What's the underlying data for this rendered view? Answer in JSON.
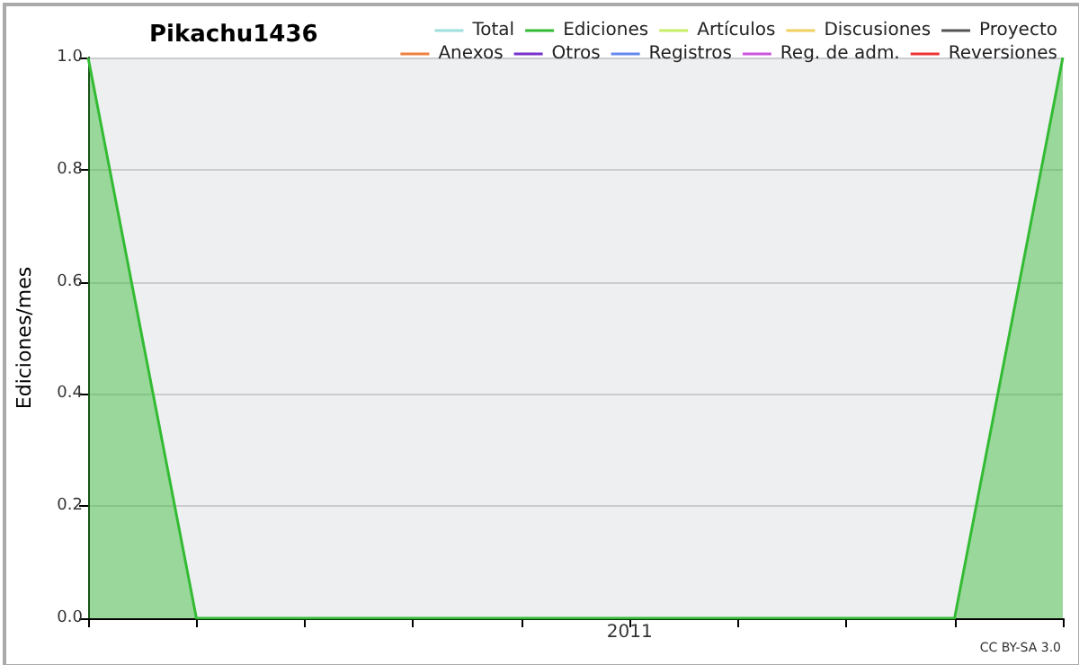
{
  "chart_data": {
    "type": "line",
    "title": "Pikachu1436",
    "ylabel": "Ediciones/mes",
    "categories": [
      null,
      null,
      null,
      null,
      null,
      "2011",
      null,
      null,
      null,
      null
    ],
    "series": [
      {
        "name": "Total",
        "color": "#a0dede",
        "values": [
          null,
          null,
          null,
          null,
          null,
          null,
          null,
          null,
          null,
          null
        ]
      },
      {
        "name": "Ediciones",
        "type": "area",
        "color": "#33bb33",
        "values": [
          1,
          0,
          0,
          0,
          0,
          0,
          0,
          0,
          0,
          1
        ]
      },
      {
        "name": "Artículos",
        "color": "#c8ee66",
        "values": [
          null,
          null,
          null,
          null,
          null,
          null,
          null,
          null,
          null,
          null
        ]
      },
      {
        "name": "Discusiones",
        "color": "#f0d060",
        "values": [
          null,
          null,
          null,
          null,
          null,
          null,
          null,
          null,
          null,
          null
        ]
      },
      {
        "name": "Proyecto",
        "color": "#555555",
        "values": [
          null,
          null,
          null,
          null,
          null,
          null,
          null,
          null,
          null,
          null
        ]
      },
      {
        "name": "Anexos",
        "color": "#f08040",
        "values": [
          null,
          null,
          null,
          null,
          null,
          null,
          null,
          null,
          null,
          null
        ]
      },
      {
        "name": "Otros",
        "color": "#7733cc",
        "values": [
          null,
          null,
          null,
          null,
          null,
          null,
          null,
          null,
          null,
          null
        ]
      },
      {
        "name": "Registros",
        "color": "#6688ee",
        "values": [
          null,
          null,
          null,
          null,
          null,
          null,
          null,
          null,
          null,
          null
        ]
      },
      {
        "name": "Reg. de adm.",
        "color": "#cc55dd",
        "values": [
          null,
          null,
          null,
          null,
          null,
          null,
          null,
          null,
          null,
          null
        ]
      },
      {
        "name": "Reversiones",
        "color": "#ee3333",
        "values": [
          null,
          null,
          null,
          null,
          null,
          null,
          null,
          null,
          null,
          null
        ]
      }
    ],
    "ylim": [
      0,
      1
    ],
    "yticks": [
      {
        "value": 0,
        "label": "0.0"
      },
      0.2,
      0.4,
      0.6,
      0.8,
      {
        "value": 1,
        "label": "1.0"
      }
    ],
    "grid": "y",
    "legend": "top right",
    "marker": "none",
    "annotations": [
      "CC BY-SA 3.0"
    ]
  }
}
